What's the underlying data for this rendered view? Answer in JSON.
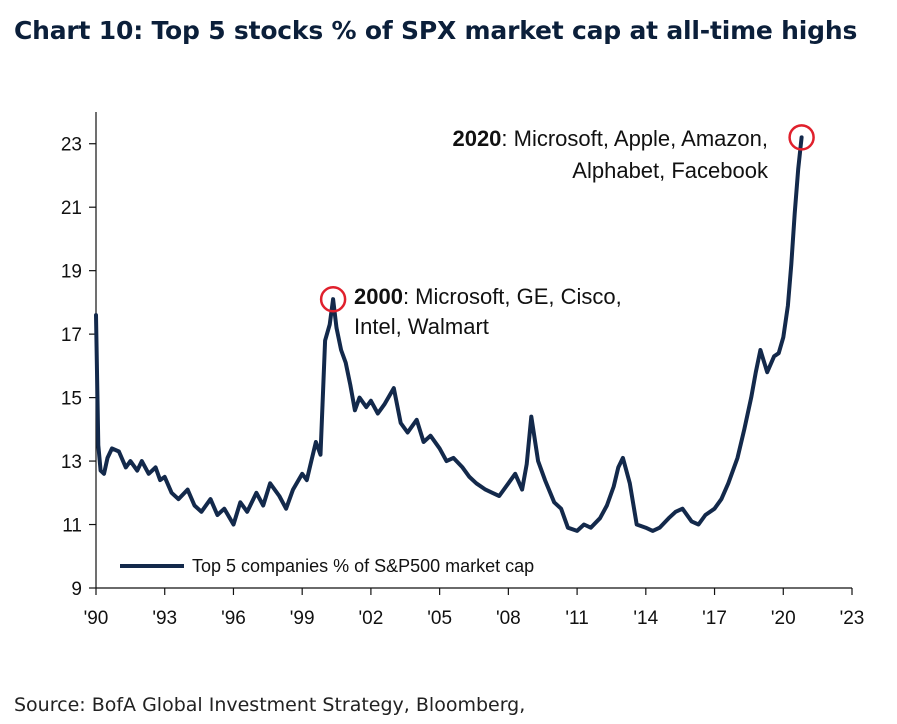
{
  "title": "Chart 10: Top 5 stocks % of SPX market cap at all-time highs",
  "source": "Source: BofA Global Investment Strategy, Bloomberg,",
  "colors": {
    "line": "#13294b",
    "circle": "#e0202c",
    "axis": "#111111"
  },
  "chart_data": {
    "type": "line",
    "title": "Chart 10: Top 5 stocks % of SPX market cap at all-time highs",
    "xlabel": "",
    "ylabel": "",
    "xlim": [
      1990,
      2023
    ],
    "ylim": [
      9,
      24
    ],
    "y_ticks": [
      9,
      11,
      13,
      15,
      17,
      19,
      21,
      23
    ],
    "x_ticks": [
      1990,
      1993,
      1996,
      1999,
      2002,
      2005,
      2008,
      2011,
      2014,
      2017,
      2020,
      2023
    ],
    "x_tick_labels": [
      "'90",
      "'93",
      "'96",
      "'99",
      "'02",
      "'05",
      "'08",
      "'11",
      "'14",
      "'17",
      "'20",
      "'23"
    ],
    "grid": false,
    "legend": {
      "position": "bottom-left",
      "entries": [
        "Top 5 companies % of S&P500 market cap"
      ]
    },
    "series": [
      {
        "name": "Top 5 companies % of S&P500 market cap",
        "x": [
          1990.0,
          1990.1,
          1990.2,
          1990.35,
          1990.5,
          1990.7,
          1991.0,
          1991.3,
          1991.5,
          1991.8,
          1992.0,
          1992.3,
          1992.6,
          1992.8,
          1993.0,
          1993.3,
          1993.6,
          1994.0,
          1994.3,
          1994.6,
          1995.0,
          1995.3,
          1995.6,
          1996.0,
          1996.3,
          1996.6,
          1997.0,
          1997.3,
          1997.6,
          1998.0,
          1998.3,
          1998.6,
          1999.0,
          1999.2,
          1999.4,
          1999.6,
          1999.8,
          2000.0,
          2000.2,
          2000.35,
          2000.5,
          2000.7,
          2000.9,
          2001.1,
          2001.3,
          2001.5,
          2001.8,
          2002.0,
          2002.3,
          2002.6,
          2003.0,
          2003.3,
          2003.6,
          2004.0,
          2004.3,
          2004.6,
          2005.0,
          2005.3,
          2005.6,
          2006.0,
          2006.3,
          2006.6,
          2007.0,
          2007.3,
          2007.6,
          2008.0,
          2008.3,
          2008.6,
          2008.8,
          2009.0,
          2009.3,
          2009.6,
          2010.0,
          2010.3,
          2010.6,
          2011.0,
          2011.3,
          2011.6,
          2012.0,
          2012.3,
          2012.6,
          2012.8,
          2013.0,
          2013.3,
          2013.6,
          2014.0,
          2014.3,
          2014.6,
          2015.0,
          2015.3,
          2015.6,
          2016.0,
          2016.3,
          2016.6,
          2017.0,
          2017.3,
          2017.6,
          2018.0,
          2018.3,
          2018.6,
          2018.8,
          2019.0,
          2019.3,
          2019.6,
          2019.8,
          2020.0,
          2020.2,
          2020.35,
          2020.5,
          2020.65,
          2020.8
        ],
        "values": [
          17.6,
          13.5,
          12.7,
          12.6,
          13.1,
          13.4,
          13.3,
          12.8,
          13.0,
          12.7,
          13.0,
          12.6,
          12.8,
          12.4,
          12.5,
          12.0,
          11.8,
          12.1,
          11.6,
          11.4,
          11.8,
          11.3,
          11.5,
          11.0,
          11.7,
          11.4,
          12.0,
          11.6,
          12.3,
          11.9,
          11.5,
          12.1,
          12.6,
          12.4,
          13.0,
          13.6,
          13.2,
          16.8,
          17.3,
          18.1,
          17.2,
          16.5,
          16.1,
          15.4,
          14.6,
          15.0,
          14.7,
          14.9,
          14.5,
          14.8,
          15.3,
          14.2,
          13.9,
          14.3,
          13.6,
          13.8,
          13.4,
          13.0,
          13.1,
          12.8,
          12.5,
          12.3,
          12.1,
          12.0,
          11.9,
          12.3,
          12.6,
          12.1,
          12.9,
          14.4,
          13.0,
          12.4,
          11.7,
          11.5,
          10.9,
          10.8,
          11.0,
          10.9,
          11.2,
          11.6,
          12.2,
          12.8,
          13.1,
          12.3,
          11.0,
          10.9,
          10.8,
          10.9,
          11.2,
          11.4,
          11.5,
          11.1,
          11.0,
          11.3,
          11.5,
          11.8,
          12.3,
          13.1,
          14.0,
          15.0,
          15.8,
          16.5,
          15.8,
          16.3,
          16.4,
          16.9,
          17.9,
          19.2,
          20.8,
          22.2,
          23.2
        ]
      }
    ],
    "annotations": [
      {
        "x": 2000.35,
        "y": 18.1,
        "label_bold": "2000",
        "label_rest": ": Microsoft, GE, Cisco,",
        "label_line2": "Intel, Walmart"
      },
      {
        "x": 2020.8,
        "y": 23.2,
        "label_bold": "2020",
        "label_rest": ": Microsoft, Apple, Amazon,",
        "label_line2": "Alphabet, Facebook"
      }
    ]
  }
}
